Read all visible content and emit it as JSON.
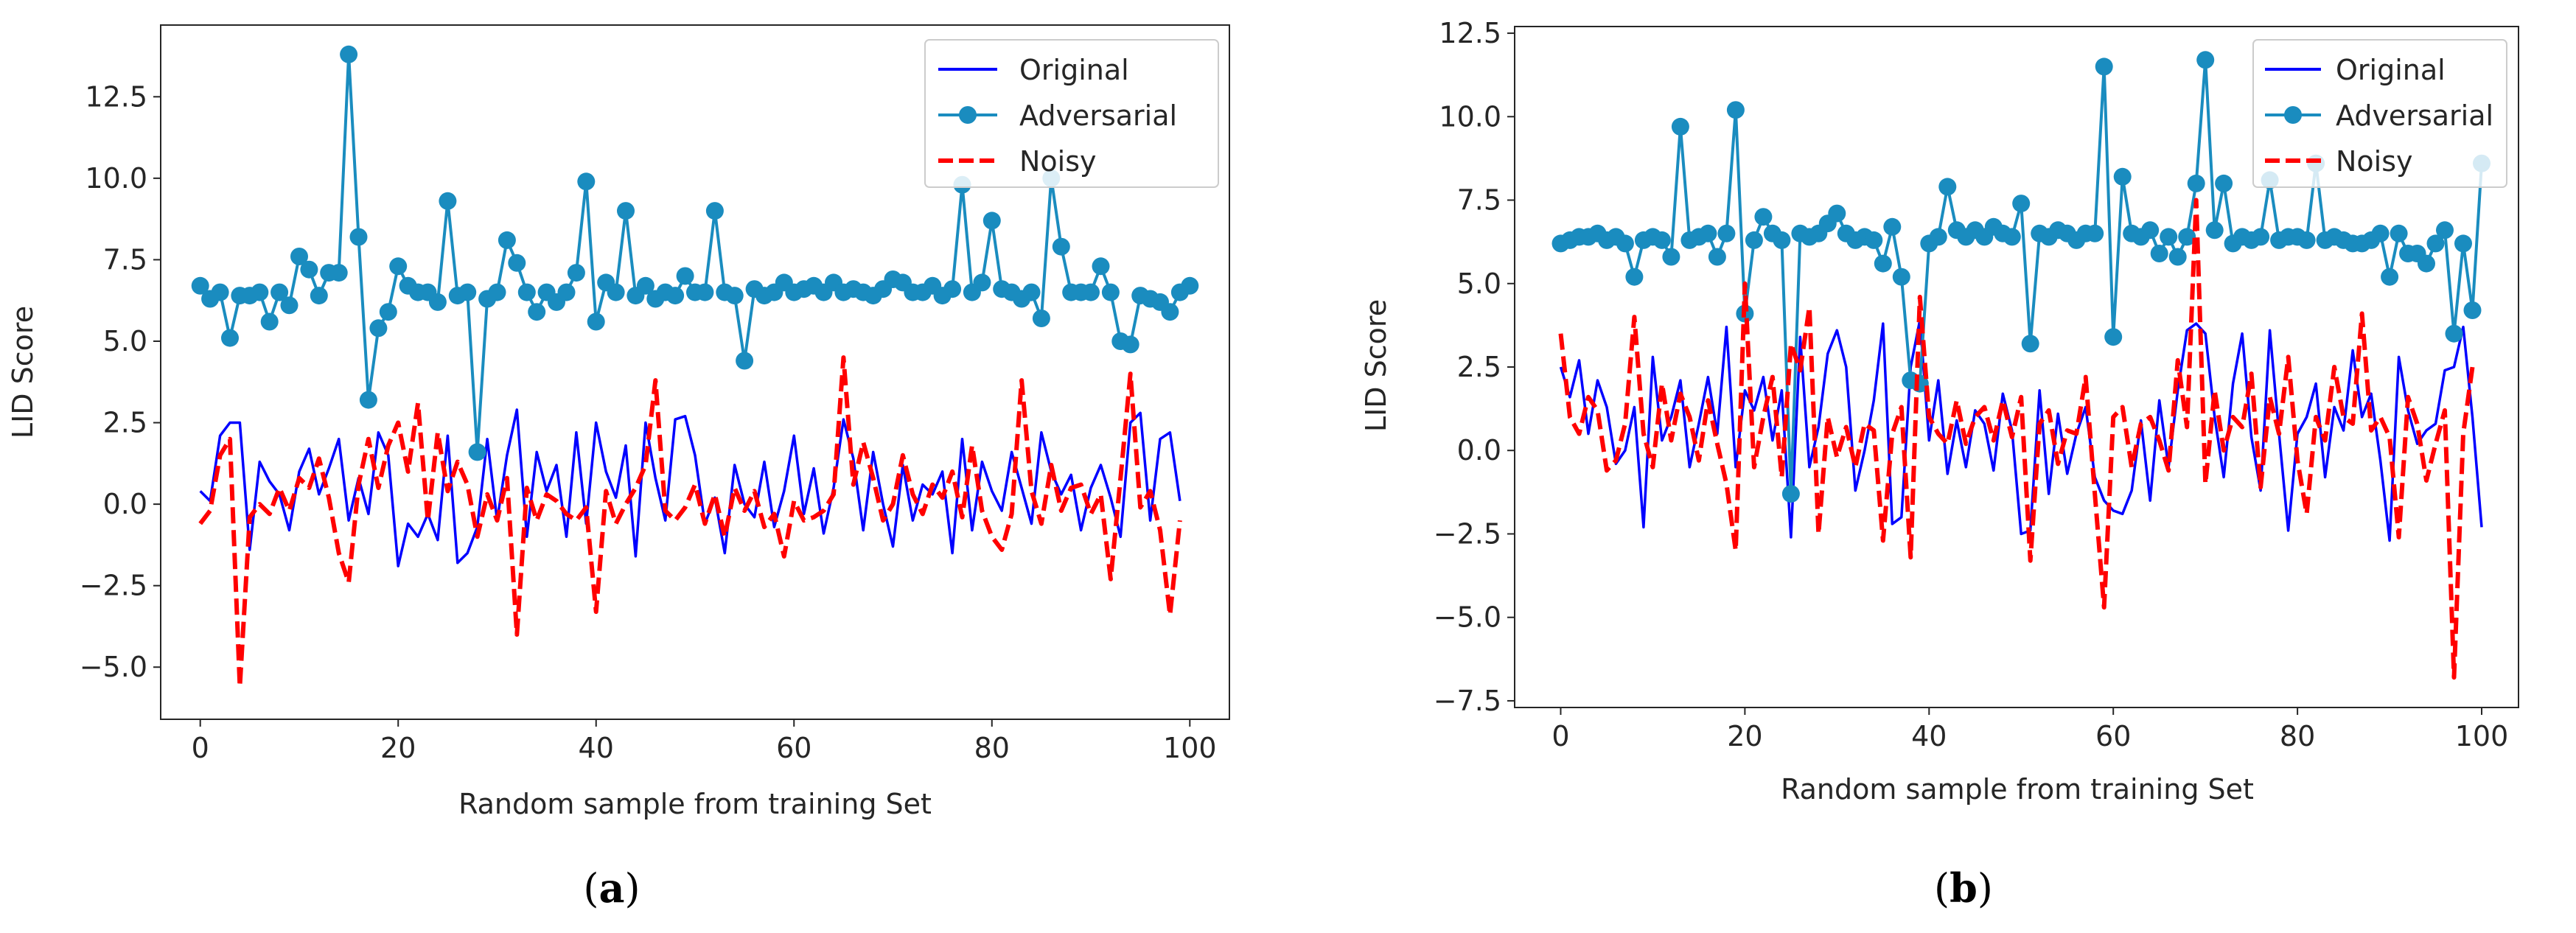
{
  "colors": {
    "original": "#0000ff",
    "adversarial": "#1a8cbf",
    "noisy": "#ff0000",
    "axis": "#262626",
    "legend_edge": "#cccccc"
  },
  "chart_data": [
    {
      "type": "line",
      "caption_prefix": "(",
      "caption_letter": "a",
      "caption_suffix": ")",
      "xlabel": "Random sample from training Set",
      "ylabel": "LID Score",
      "xlim": [
        -4,
        104
      ],
      "ylim": [
        -6.6,
        14.7
      ],
      "xticks": [
        0,
        20,
        40,
        60,
        80,
        100
      ],
      "xtick_labels": [
        "0",
        "20",
        "40",
        "60",
        "80",
        "100"
      ],
      "yticks": [
        -5,
        -2.5,
        0,
        2.5,
        5,
        7.5,
        10,
        12.5
      ],
      "ytick_labels": [
        "−5.0",
        "−2.5",
        "0.0",
        "2.5",
        "5.0",
        "7.5",
        "10.0",
        "12.5"
      ],
      "legend": [
        "Original",
        "Adversarial",
        "Noisy"
      ],
      "legend_position": "top-right",
      "series": [
        {
          "name": "Original",
          "style": "solid",
          "values": [
            0.4,
            0.1,
            2.1,
            2.5,
            2.5,
            -1.4,
            1.3,
            0.7,
            0.3,
            -0.8,
            1.0,
            1.7,
            0.3,
            1.1,
            2.0,
            -0.5,
            0.8,
            -0.3,
            2.2,
            1.5,
            -1.9,
            -0.6,
            -1.0,
            -0.3,
            -1.1,
            2.1,
            -1.8,
            -1.5,
            -0.7,
            2.0,
            -0.5,
            1.5,
            2.9,
            -1.0,
            1.6,
            0.4,
            1.2,
            -1.0,
            2.2,
            -0.6,
            2.5,
            1.0,
            0.2,
            1.8,
            -1.6,
            2.5,
            0.8,
            -0.5,
            2.6,
            2.7,
            1.5,
            -0.6,
            0.2,
            -1.5,
            1.2,
            0.0,
            -0.4,
            1.3,
            -0.7,
            0.4,
            2.1,
            -0.3,
            1.1,
            -0.9,
            0.5,
            2.6,
            1.4,
            -0.8,
            1.6,
            0.0,
            -1.3,
            1.2,
            -0.5,
            0.6,
            0.3,
            1.0,
            -1.5,
            2.0,
            -0.8,
            1.3,
            0.4,
            -0.2,
            1.6,
            0.5,
            -0.6,
            2.2,
            1.0,
            0.3,
            0.9,
            -0.8,
            0.5,
            1.2,
            0.2,
            -1.0,
            2.5,
            2.8,
            -0.5,
            2.0,
            2.2,
            0.1
          ]
        },
        {
          "name": "Adversarial",
          "style": "markers",
          "values": [
            6.7,
            6.3,
            6.5,
            5.1,
            6.4,
            6.4,
            6.5,
            5.6,
            6.5,
            6.1,
            7.6,
            7.2,
            6.4,
            7.1,
            7.1,
            13.8,
            8.2,
            3.2,
            5.4,
            5.9,
            7.3,
            6.7,
            6.5,
            6.5,
            6.2,
            9.3,
            6.4,
            6.5,
            1.6,
            6.3,
            6.5,
            8.1,
            7.4,
            6.5,
            5.9,
            6.5,
            6.2,
            6.5,
            7.1,
            9.9,
            5.6,
            6.8,
            6.5,
            9.0,
            6.4,
            6.7,
            6.3,
            6.5,
            6.4,
            7.0,
            6.5,
            6.5,
            9.0,
            6.5,
            6.4,
            4.4,
            6.6,
            6.4,
            6.5,
            6.8,
            6.5,
            6.6,
            6.7,
            6.5,
            6.8,
            6.5,
            6.6,
            6.5,
            6.4,
            6.6,
            6.9,
            6.8,
            6.5,
            6.5,
            6.7,
            6.4,
            6.6,
            9.8,
            6.5,
            6.8,
            8.7,
            6.6,
            6.5,
            6.3,
            6.5,
            5.7,
            10.0,
            7.9,
            6.5,
            6.5,
            6.5,
            7.3,
            6.5,
            5.0,
            4.9,
            6.4,
            6.3,
            6.2,
            5.9,
            6.5,
            6.7
          ]
        },
        {
          "name": "Noisy",
          "style": "dashed",
          "values": [
            -0.6,
            -0.2,
            1.5,
            2.0,
            -5.6,
            -0.4,
            0.0,
            -0.3,
            0.5,
            -0.2,
            0.8,
            0.5,
            1.4,
            0.2,
            -1.5,
            -2.4,
            0.6,
            2.0,
            0.5,
            1.8,
            2.5,
            1.0,
            3.1,
            -0.5,
            2.2,
            0.4,
            1.3,
            0.6,
            -1.0,
            0.3,
            -0.5,
            0.8,
            -4.0,
            0.5,
            -0.5,
            0.3,
            0.1,
            -0.3,
            -0.5,
            -0.1,
            -3.3,
            0.4,
            -0.6,
            0.0,
            0.5,
            1.2,
            3.8,
            -0.2,
            -0.5,
            -0.1,
            0.6,
            -0.6,
            0.3,
            -1.0,
            0.5,
            -0.2,
            0.4,
            -0.7,
            -0.3,
            -1.6,
            0.1,
            -0.5,
            -0.4,
            -0.2,
            0.3,
            4.5,
            0.6,
            1.9,
            0.8,
            -0.5,
            0.0,
            1.5,
            0.3,
            -0.3,
            0.6,
            0.2,
            1.0,
            -0.4,
            1.8,
            -0.2,
            -1.0,
            -1.4,
            -0.3,
            3.8,
            0.4,
            -0.6,
            1.2,
            -0.2,
            0.5,
            0.6,
            -0.3,
            0.3,
            -2.3,
            0.8,
            4.0,
            -0.1,
            0.4,
            -0.8,
            -3.4,
            -0.5
          ]
        }
      ]
    },
    {
      "type": "line",
      "caption_prefix": "(",
      "caption_letter": "b",
      "caption_suffix": ")",
      "xlabel": "Random sample from training Set",
      "ylabel": "LID Score",
      "xlim": [
        -5,
        104
      ],
      "ylim": [
        -7.7,
        12.7
      ],
      "xticks": [
        0,
        20,
        40,
        60,
        80,
        100
      ],
      "xtick_labels": [
        "0",
        "20",
        "40",
        "60",
        "80",
        "100"
      ],
      "yticks": [
        -7.5,
        -5,
        -2.5,
        0,
        2.5,
        5,
        7.5,
        10,
        12.5
      ],
      "ytick_labels": [
        "−7.5",
        "−5.0",
        "−2.5",
        "0.0",
        "2.5",
        "5.0",
        "7.5",
        "10.0",
        "12.5"
      ],
      "legend": [
        "Original",
        "Adversarial",
        "Noisy"
      ],
      "legend_position": "top-right",
      "series": [
        {
          "name": "Original",
          "style": "solid",
          "values": [
            2.5,
            1.6,
            2.7,
            0.5,
            2.1,
            1.3,
            -0.4,
            0.0,
            1.3,
            -2.3,
            2.8,
            0.3,
            1.0,
            2.1,
            -0.5,
            0.8,
            2.2,
            0.5,
            3.7,
            -0.5,
            1.8,
            1.2,
            2.2,
            0.3,
            1.8,
            -2.6,
            3.4,
            -0.5,
            0.7,
            2.9,
            3.6,
            2.5,
            -1.2,
            0.0,
            1.5,
            3.8,
            -2.2,
            -2.0,
            2.5,
            3.9,
            0.3,
            2.1,
            -0.7,
            0.9,
            -0.5,
            1.2,
            0.8,
            -0.6,
            1.7,
            0.6,
            -2.5,
            -2.4,
            1.8,
            -1.3,
            1.1,
            -0.7,
            0.5,
            1.3,
            -0.8,
            -1.5,
            -1.8,
            -1.9,
            -1.2,
            0.9,
            -1.5,
            1.5,
            -0.5,
            1.8,
            3.6,
            3.8,
            3.5,
            1.0,
            -0.8,
            2.0,
            3.5,
            0.4,
            -1.2,
            3.6,
            0.5,
            -2.4,
            0.5,
            1.0,
            2.0,
            -0.8,
            1.3,
            0.6,
            3.0,
            1.0,
            1.7,
            -0.3,
            -2.7,
            2.8,
            1.2,
            0.2,
            0.6,
            0.8,
            2.4,
            2.5,
            3.7,
            1.0,
            -2.3
          ]
        },
        {
          "name": "Adversarial",
          "style": "markers",
          "values": [
            6.2,
            6.3,
            6.4,
            6.4,
            6.5,
            6.3,
            6.4,
            6.2,
            5.2,
            6.3,
            6.4,
            6.3,
            5.8,
            9.7,
            6.3,
            6.4,
            6.5,
            5.8,
            6.5,
            10.2,
            4.1,
            6.3,
            7.0,
            6.5,
            6.3,
            -1.3,
            6.5,
            6.4,
            6.5,
            6.8,
            7.1,
            6.5,
            6.3,
            6.4,
            6.3,
            5.6,
            6.7,
            5.2,
            2.1,
            2.0,
            6.2,
            6.4,
            7.9,
            6.6,
            6.4,
            6.6,
            6.4,
            6.7,
            6.5,
            6.4,
            7.4,
            3.2,
            6.5,
            6.4,
            6.6,
            6.5,
            6.3,
            6.5,
            6.5,
            11.5,
            3.4,
            8.2,
            6.5,
            6.4,
            6.6,
            5.9,
            6.4,
            5.8,
            6.4,
            8.0,
            11.7,
            6.6,
            8.0,
            6.2,
            6.4,
            6.3,
            6.4,
            8.1,
            6.3,
            6.4,
            6.4,
            6.3,
            8.6,
            6.3,
            6.4,
            6.3,
            6.2,
            6.2,
            6.3,
            6.5,
            5.2,
            6.5,
            5.9,
            5.9,
            5.6,
            6.2,
            6.6,
            3.5,
            6.2,
            4.2,
            8.6
          ]
        },
        {
          "name": "Noisy",
          "style": "dashed",
          "values": [
            3.5,
            1.0,
            0.5,
            1.6,
            1.2,
            -0.6,
            -0.3,
            0.8,
            4.0,
            0.5,
            -0.5,
            2.0,
            0.3,
            1.7,
            1.0,
            -0.3,
            1.5,
            0.2,
            -1.0,
            -3.0,
            5.0,
            -0.5,
            1.0,
            2.2,
            -0.8,
            3.2,
            2.4,
            4.3,
            -2.5,
            1.0,
            -0.2,
            0.7,
            -0.5,
            0.8,
            0.6,
            -2.7,
            0.5,
            1.3,
            -3.2,
            4.6,
            1.0,
            0.5,
            0.2,
            1.5,
            0.2,
            1.0,
            1.3,
            0.3,
            1.5,
            0.4,
            1.6,
            -3.3,
            0.8,
            1.2,
            -0.4,
            0.6,
            0.5,
            2.2,
            -1.3,
            -4.7,
            1.0,
            1.3,
            -0.5,
            0.8,
            1.0,
            0.3,
            -0.6,
            2.7,
            0.7,
            7.5,
            -1.0,
            1.8,
            0.0,
            1.0,
            0.7,
            2.3,
            -1.1,
            1.6,
            0.5,
            2.8,
            -0.3,
            -1.9,
            1.0,
            0.3,
            2.5,
            1.0,
            0.8,
            4.1,
            0.6,
            1.0,
            0.4,
            -2.6,
            1.6,
            0.8,
            -0.9,
            0.2,
            1.2,
            -6.8,
            0.5,
            2.5
          ]
        }
      ]
    }
  ]
}
